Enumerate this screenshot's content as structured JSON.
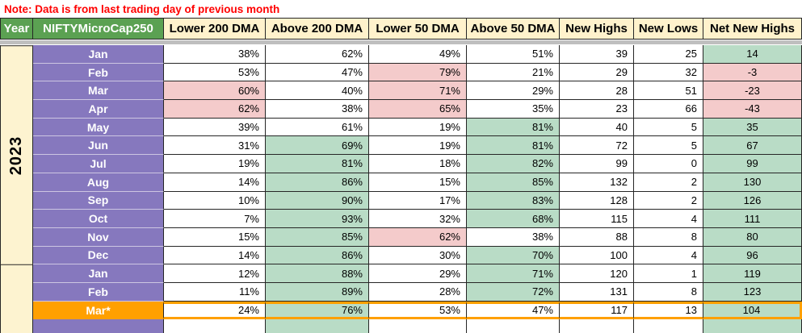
{
  "note": "Note: Data is from last trading day of previous month",
  "header": {
    "year_label": "Year",
    "index_label": "NIFTYMicroCap250",
    "columns": [
      "Lower 200 DMA",
      "Above 200 DMA",
      "Lower 50 DMA",
      "Above 50 DMA",
      "New Highs",
      "New Lows",
      "Net New Highs"
    ]
  },
  "colors": {
    "note_red": "#ff0000",
    "header_green": "#5ba152",
    "header_cream": "#fff2cc",
    "month_purple": "#8678be",
    "pink": "#f4cbcb",
    "mint": "#b9dcc6",
    "orange": "#ffa000",
    "year_bg": "#fdf3d0",
    "separator": "#bfbfbf"
  },
  "year_groups": [
    {
      "label": "2023",
      "start": 1,
      "span": 12
    },
    {
      "label": "",
      "start": 13,
      "span": 4
    }
  ],
  "rows": [
    {
      "month": "Jan",
      "highlight": false,
      "cells": [
        {
          "v": "38%",
          "bg": "w"
        },
        {
          "v": "62%",
          "bg": "w"
        },
        {
          "v": "49%",
          "bg": "w"
        },
        {
          "v": "51%",
          "bg": "w"
        },
        {
          "v": "39",
          "bg": "w"
        },
        {
          "v": "25",
          "bg": "w"
        },
        {
          "v": "14",
          "bg": "g"
        }
      ]
    },
    {
      "month": "Feb",
      "highlight": false,
      "cells": [
        {
          "v": "53%",
          "bg": "w"
        },
        {
          "v": "47%",
          "bg": "w"
        },
        {
          "v": "79%",
          "bg": "p"
        },
        {
          "v": "21%",
          "bg": "w"
        },
        {
          "v": "29",
          "bg": "w"
        },
        {
          "v": "32",
          "bg": "w"
        },
        {
          "v": "-3",
          "bg": "p"
        }
      ]
    },
    {
      "month": "Mar",
      "highlight": false,
      "cells": [
        {
          "v": "60%",
          "bg": "p"
        },
        {
          "v": "40%",
          "bg": "w"
        },
        {
          "v": "71%",
          "bg": "p"
        },
        {
          "v": "29%",
          "bg": "w"
        },
        {
          "v": "28",
          "bg": "w"
        },
        {
          "v": "51",
          "bg": "w"
        },
        {
          "v": "-23",
          "bg": "p"
        }
      ]
    },
    {
      "month": "Apr",
      "highlight": false,
      "cells": [
        {
          "v": "62%",
          "bg": "p"
        },
        {
          "v": "38%",
          "bg": "w"
        },
        {
          "v": "65%",
          "bg": "p"
        },
        {
          "v": "35%",
          "bg": "w"
        },
        {
          "v": "23",
          "bg": "w"
        },
        {
          "v": "66",
          "bg": "w"
        },
        {
          "v": "-43",
          "bg": "p"
        }
      ]
    },
    {
      "month": "May",
      "highlight": false,
      "cells": [
        {
          "v": "39%",
          "bg": "w"
        },
        {
          "v": "61%",
          "bg": "w"
        },
        {
          "v": "19%",
          "bg": "w"
        },
        {
          "v": "81%",
          "bg": "g"
        },
        {
          "v": "40",
          "bg": "w"
        },
        {
          "v": "5",
          "bg": "w"
        },
        {
          "v": "35",
          "bg": "g"
        }
      ]
    },
    {
      "month": "Jun",
      "highlight": false,
      "cells": [
        {
          "v": "31%",
          "bg": "w"
        },
        {
          "v": "69%",
          "bg": "g"
        },
        {
          "v": "19%",
          "bg": "w"
        },
        {
          "v": "81%",
          "bg": "g"
        },
        {
          "v": "72",
          "bg": "w"
        },
        {
          "v": "5",
          "bg": "w"
        },
        {
          "v": "67",
          "bg": "g"
        }
      ]
    },
    {
      "month": "Jul",
      "highlight": false,
      "cells": [
        {
          "v": "19%",
          "bg": "w"
        },
        {
          "v": "81%",
          "bg": "g"
        },
        {
          "v": "18%",
          "bg": "w"
        },
        {
          "v": "82%",
          "bg": "g"
        },
        {
          "v": "99",
          "bg": "w"
        },
        {
          "v": "0",
          "bg": "w"
        },
        {
          "v": "99",
          "bg": "g"
        }
      ]
    },
    {
      "month": "Aug",
      "highlight": false,
      "cells": [
        {
          "v": "14%",
          "bg": "w"
        },
        {
          "v": "86%",
          "bg": "g"
        },
        {
          "v": "15%",
          "bg": "w"
        },
        {
          "v": "85%",
          "bg": "g"
        },
        {
          "v": "132",
          "bg": "w"
        },
        {
          "v": "2",
          "bg": "w"
        },
        {
          "v": "130",
          "bg": "g"
        }
      ]
    },
    {
      "month": "Sep",
      "highlight": false,
      "cells": [
        {
          "v": "10%",
          "bg": "w"
        },
        {
          "v": "90%",
          "bg": "g"
        },
        {
          "v": "17%",
          "bg": "w"
        },
        {
          "v": "83%",
          "bg": "g"
        },
        {
          "v": "128",
          "bg": "w"
        },
        {
          "v": "2",
          "bg": "w"
        },
        {
          "v": "126",
          "bg": "g"
        }
      ]
    },
    {
      "month": "Oct",
      "highlight": false,
      "cells": [
        {
          "v": "7%",
          "bg": "w"
        },
        {
          "v": "93%",
          "bg": "g"
        },
        {
          "v": "32%",
          "bg": "w"
        },
        {
          "v": "68%",
          "bg": "g"
        },
        {
          "v": "115",
          "bg": "w"
        },
        {
          "v": "4",
          "bg": "w"
        },
        {
          "v": "111",
          "bg": "g"
        }
      ]
    },
    {
      "month": "Nov",
      "highlight": false,
      "cells": [
        {
          "v": "15%",
          "bg": "w"
        },
        {
          "v": "85%",
          "bg": "g"
        },
        {
          "v": "62%",
          "bg": "p"
        },
        {
          "v": "38%",
          "bg": "w"
        },
        {
          "v": "88",
          "bg": "w"
        },
        {
          "v": "8",
          "bg": "w"
        },
        {
          "v": "80",
          "bg": "g"
        }
      ]
    },
    {
      "month": "Dec",
      "highlight": false,
      "cells": [
        {
          "v": "14%",
          "bg": "w"
        },
        {
          "v": "86%",
          "bg": "g"
        },
        {
          "v": "30%",
          "bg": "w"
        },
        {
          "v": "70%",
          "bg": "g"
        },
        {
          "v": "100",
          "bg": "w"
        },
        {
          "v": "4",
          "bg": "w"
        },
        {
          "v": "96",
          "bg": "g"
        }
      ]
    },
    {
      "month": "Jan",
      "highlight": false,
      "cells": [
        {
          "v": "12%",
          "bg": "w"
        },
        {
          "v": "88%",
          "bg": "g"
        },
        {
          "v": "29%",
          "bg": "w"
        },
        {
          "v": "71%",
          "bg": "g"
        },
        {
          "v": "120",
          "bg": "w"
        },
        {
          "v": "1",
          "bg": "w"
        },
        {
          "v": "119",
          "bg": "g"
        }
      ]
    },
    {
      "month": "Feb",
      "highlight": false,
      "cells": [
        {
          "v": "11%",
          "bg": "w"
        },
        {
          "v": "89%",
          "bg": "g"
        },
        {
          "v": "28%",
          "bg": "w"
        },
        {
          "v": "72%",
          "bg": "g"
        },
        {
          "v": "131",
          "bg": "w"
        },
        {
          "v": "8",
          "bg": "w"
        },
        {
          "v": "123",
          "bg": "g"
        }
      ]
    },
    {
      "month": "Mar*",
      "highlight": true,
      "cells": [
        {
          "v": "24%",
          "bg": "w"
        },
        {
          "v": "76%",
          "bg": "g"
        },
        {
          "v": "53%",
          "bg": "w"
        },
        {
          "v": "47%",
          "bg": "w"
        },
        {
          "v": "117",
          "bg": "w"
        },
        {
          "v": "13",
          "bg": "w"
        },
        {
          "v": "104",
          "bg": "g"
        }
      ]
    }
  ],
  "partial_row": {
    "month": "",
    "cells": [
      {
        "v": "",
        "bg": "w"
      },
      {
        "v": "",
        "bg": "g"
      },
      {
        "v": "",
        "bg": "w"
      },
      {
        "v": "",
        "bg": "w"
      },
      {
        "v": "",
        "bg": "w"
      },
      {
        "v": "",
        "bg": "w"
      },
      {
        "v": "",
        "bg": "g"
      }
    ]
  }
}
